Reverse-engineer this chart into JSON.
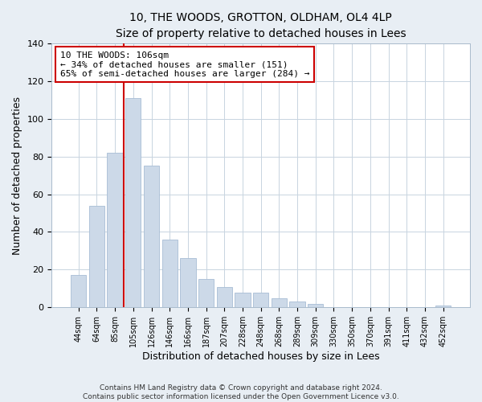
{
  "title": "10, THE WOODS, GROTTON, OLDHAM, OL4 4LP",
  "subtitle": "Size of property relative to detached houses in Lees",
  "xlabel": "Distribution of detached houses by size in Lees",
  "ylabel": "Number of detached properties",
  "bar_labels": [
    "44sqm",
    "64sqm",
    "85sqm",
    "105sqm",
    "126sqm",
    "146sqm",
    "166sqm",
    "187sqm",
    "207sqm",
    "228sqm",
    "248sqm",
    "268sqm",
    "289sqm",
    "309sqm",
    "330sqm",
    "350sqm",
    "370sqm",
    "391sqm",
    "411sqm",
    "432sqm",
    "452sqm"
  ],
  "bar_values": [
    17,
    54,
    82,
    111,
    75,
    36,
    26,
    15,
    11,
    8,
    8,
    5,
    3,
    2,
    0,
    0,
    0,
    0,
    0,
    0,
    1
  ],
  "bar_color": "#ccd9e8",
  "bar_edge_color": "#a8bdd4",
  "vline_color": "#cc0000",
  "annotation_text": "10 THE WOODS: 106sqm\n← 34% of detached houses are smaller (151)\n65% of semi-detached houses are larger (284) →",
  "annotation_box_color": "#ffffff",
  "annotation_box_edge_color": "#cc0000",
  "ylim": [
    0,
    140
  ],
  "yticks": [
    0,
    20,
    40,
    60,
    80,
    100,
    120,
    140
  ],
  "footer_line1": "Contains HM Land Registry data © Crown copyright and database right 2024.",
  "footer_line2": "Contains public sector information licensed under the Open Government Licence v3.0.",
  "bg_color": "#e8eef4",
  "plot_bg_color": "#ffffff",
  "grid_color": "#c8d4e0"
}
